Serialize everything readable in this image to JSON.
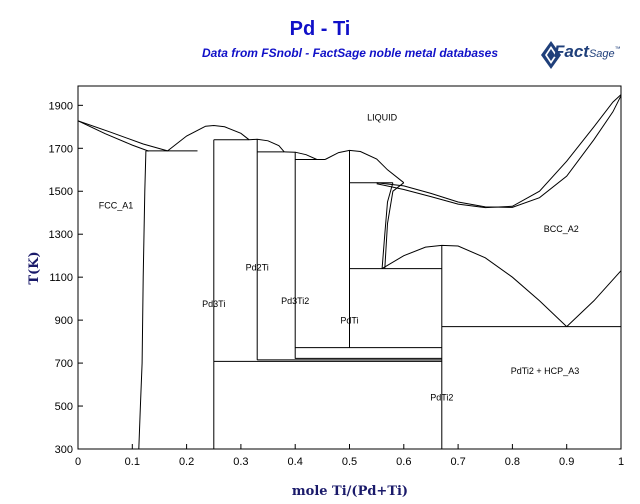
{
  "header": {
    "title": "Pd - Ti",
    "subtitle": "Data from FSnobl - FactSage noble metal databases",
    "logo_main": "Fact",
    "logo_sub": "Sage",
    "logo_mark": "™"
  },
  "chart_data": {
    "type": "line",
    "title": "Pd - Ti",
    "subtitle": "Data from FSnobl - FactSage noble metal databases",
    "xlabel": "mole Ti/(Pd+Ti)",
    "ylabel": "T(K)",
    "xlim": [
      0,
      1
    ],
    "ylim": [
      300,
      1990
    ],
    "xticks": [
      0,
      0.1,
      0.2,
      0.3,
      0.4,
      0.5,
      0.6,
      0.7,
      0.8,
      0.9,
      1
    ],
    "xtick_labels": [
      "0",
      "0.1",
      "0.2",
      "0.3",
      "0.4",
      "0.5",
      "0.6",
      "0.7",
      "0.8",
      "0.9",
      "1"
    ],
    "yticks": [
      300,
      500,
      700,
      900,
      1100,
      1300,
      1500,
      1700,
      1900
    ],
    "ytick_labels": [
      "300",
      "500",
      "700",
      "900",
      "1100",
      "1300",
      "1500",
      "1700",
      "1900"
    ],
    "grid": false,
    "phase_labels": [
      {
        "text": "LIQUID",
        "x": 0.56,
        "y": 1830
      },
      {
        "text": "FCC_A1",
        "x": 0.07,
        "y": 1420
      },
      {
        "text": "BCC_A2",
        "x": 0.89,
        "y": 1310
      },
      {
        "text": "Pd2Ti",
        "x": 0.33,
        "y": 1130
      },
      {
        "text": "Pd3Ti",
        "x": 0.25,
        "y": 960
      },
      {
        "text": "Pd3Ti2",
        "x": 0.4,
        "y": 975
      },
      {
        "text": "PdTi",
        "x": 0.5,
        "y": 885
      },
      {
        "text": "PdTi2 + HCP_A3",
        "x": 0.86,
        "y": 650
      },
      {
        "text": "PdTi2",
        "x": 0.67,
        "y": 525
      }
    ],
    "lines": [
      [
        [
          0,
          1828
        ],
        [
          0.05,
          1768
        ],
        [
          0.1,
          1715
        ],
        [
          0.13,
          1687
        ]
      ],
      [
        [
          0,
          1828
        ],
        [
          0.06,
          1775
        ],
        [
          0.12,
          1720
        ],
        [
          0.165,
          1688
        ]
      ],
      [
        [
          0.165,
          1688
        ],
        [
          0.2,
          1757
        ],
        [
          0.235,
          1803
        ],
        [
          0.25,
          1806
        ],
        [
          0.27,
          1800
        ],
        [
          0.3,
          1770
        ],
        [
          0.315,
          1740
        ]
      ],
      [
        [
          0.315,
          1740
        ],
        [
          0.33,
          1742
        ],
        [
          0.35,
          1735
        ],
        [
          0.37,
          1712
        ],
        [
          0.38,
          1683
        ]
      ],
      [
        [
          0.38,
          1683
        ],
        [
          0.4,
          1682
        ],
        [
          0.42,
          1670
        ],
        [
          0.44,
          1648
        ]
      ],
      [
        [
          0.455,
          1648
        ],
        [
          0.48,
          1680
        ],
        [
          0.5,
          1690
        ],
        [
          0.52,
          1685
        ],
        [
          0.55,
          1650
        ],
        [
          0.57,
          1600
        ],
        [
          0.6,
          1540
        ]
      ],
      [
        [
          0.55,
          1540
        ],
        [
          0.6,
          1525
        ],
        [
          0.65,
          1490
        ],
        [
          0.7,
          1450
        ],
        [
          0.75,
          1427
        ],
        [
          0.8,
          1425
        ],
        [
          0.85,
          1470
        ],
        [
          0.9,
          1570
        ],
        [
          0.95,
          1740
        ],
        [
          0.985,
          1870
        ],
        [
          1,
          1945
        ]
      ],
      [
        [
          0.55,
          1535
        ],
        [
          0.6,
          1508
        ],
        [
          0.65,
          1475
        ],
        [
          0.7,
          1440
        ],
        [
          0.75,
          1424
        ],
        [
          0.8,
          1430
        ],
        [
          0.85,
          1500
        ],
        [
          0.9,
          1640
        ],
        [
          0.95,
          1800
        ],
        [
          0.985,
          1915
        ],
        [
          1,
          1950
        ]
      ],
      [
        [
          0.125,
          1688
        ],
        [
          0.22,
          1688
        ]
      ],
      [
        [
          0.125,
          1688
        ],
        [
          0.123,
          1500
        ],
        [
          0.12,
          1100
        ],
        [
          0.118,
          700
        ],
        [
          0.115,
          500
        ],
        [
          0.112,
          300
        ]
      ],
      [
        [
          0.25,
          1740
        ],
        [
          0.315,
          1740
        ]
      ],
      [
        [
          0.33,
          1683
        ],
        [
          0.38,
          1683
        ]
      ],
      [
        [
          0.4,
          1648
        ],
        [
          0.455,
          1648
        ]
      ],
      [
        [
          0.25,
          1740
        ],
        [
          0.25,
          300
        ]
      ],
      [
        [
          0.33,
          1742
        ],
        [
          0.33,
          715
        ]
      ],
      [
        [
          0.4,
          1683
        ],
        [
          0.4,
          720
        ]
      ],
      [
        [
          0.5,
          1690
        ],
        [
          0.5,
          770
        ]
      ],
      [
        [
          0.25,
          708
        ],
        [
          0.67,
          708
        ]
      ],
      [
        [
          0.33,
          715
        ],
        [
          0.67,
          715
        ]
      ],
      [
        [
          0.4,
          722
        ],
        [
          0.67,
          722
        ]
      ],
      [
        [
          0.4,
          772
        ],
        [
          0.67,
          772
        ]
      ],
      [
        [
          0.5,
          1540
        ],
        [
          0.58,
          1540
        ]
      ],
      [
        [
          0.58,
          1540
        ],
        [
          0.57,
          1450
        ],
        [
          0.565,
          1300
        ],
        [
          0.56,
          1140
        ]
      ],
      [
        [
          0.6,
          1540
        ],
        [
          0.58,
          1500
        ],
        [
          0.57,
          1350
        ],
        [
          0.565,
          1140
        ]
      ],
      [
        [
          0.5,
          1140
        ],
        [
          0.67,
          1140
        ]
      ],
      [
        [
          0.56,
          1140
        ],
        [
          0.6,
          1200
        ],
        [
          0.64,
          1240
        ],
        [
          0.67,
          1248
        ],
        [
          0.7,
          1245
        ],
        [
          0.75,
          1190
        ],
        [
          0.8,
          1100
        ],
        [
          0.85,
          990
        ],
        [
          0.9,
          870
        ]
      ],
      [
        [
          0.67,
          1248
        ],
        [
          0.67,
          300
        ]
      ],
      [
        [
          0.67,
          870
        ],
        [
          1,
          870
        ]
      ],
      [
        [
          0.9,
          870
        ],
        [
          0.95,
          990
        ],
        [
          1,
          1130
        ]
      ]
    ]
  }
}
